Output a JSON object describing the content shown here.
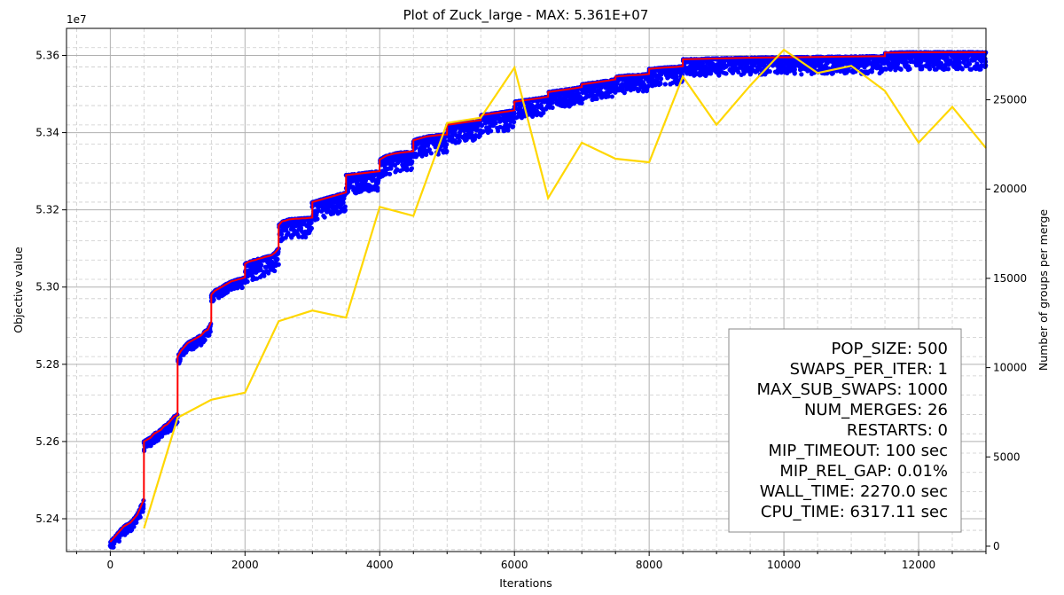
{
  "chart_data": {
    "type": "line",
    "title": "Plot of Zuck_large - MAX: 5.361E+07",
    "xlabel": "Iterations",
    "ylabel": "Objective value",
    "y2label": "Number of groups per merge",
    "y_offset_text": "1e7",
    "xlim": [
      -650,
      13000
    ],
    "ylim": [
      52.315,
      53.67
    ],
    "y2lim": [
      -300,
      29000
    ],
    "x_ticks": [
      0,
      2000,
      4000,
      6000,
      8000,
      10000,
      12000
    ],
    "x_tick_labels": [
      "0",
      "2000",
      "4000",
      "6000",
      "8000",
      "10000",
      "12000"
    ],
    "y_ticks": [
      52.4,
      52.6,
      52.8,
      53.0,
      53.2,
      53.4,
      53.6
    ],
    "y_tick_labels": [
      "5.24",
      "5.26",
      "5.28",
      "5.30",
      "5.32",
      "5.34",
      "5.36"
    ],
    "y2_ticks": [
      0,
      5000,
      10000,
      15000,
      20000,
      25000
    ],
    "y2_tick_labels": [
      "0",
      "5000",
      "10000",
      "15000",
      "20000",
      "25000"
    ],
    "grid": true,
    "series": [
      {
        "kind": "best",
        "color": "#ff0000",
        "x": [
          0,
          50,
          100,
          150,
          200,
          250,
          300,
          350,
          400,
          450,
          499,
          500,
          550,
          600,
          650,
          700,
          750,
          800,
          850,
          900,
          950,
          999,
          1000,
          1050,
          1100,
          1150,
          1200,
          1250,
          1300,
          1350,
          1400,
          1450,
          1499,
          1500,
          1550,
          1600,
          1650,
          1700,
          1750,
          1800,
          1850,
          1900,
          1950,
          1999,
          2000,
          2050,
          2100,
          2150,
          2200,
          2250,
          2300,
          2350,
          2400,
          2450,
          2499,
          2500,
          2550,
          2600,
          2650,
          2700,
          2750,
          2800,
          2850,
          2900,
          2950,
          2999,
          3000,
          3100,
          3200,
          3300,
          3400,
          3499,
          3500,
          3600,
          3700,
          3800,
          3900,
          3999,
          4000,
          4100,
          4200,
          4300,
          4400,
          4499,
          4500,
          4600,
          4700,
          4800,
          4900,
          4999,
          5000,
          5200,
          5400,
          5499,
          5500,
          5700,
          5900,
          5999,
          6000,
          6200,
          6400,
          6499,
          6500,
          6700,
          6900,
          6999,
          7000,
          7200,
          7400,
          7499,
          7500,
          7700,
          7900,
          7999,
          8000,
          8200,
          8400,
          8499,
          8500,
          9000,
          9500,
          10000,
          10500,
          11000,
          11499,
          11500,
          12000,
          12500,
          13000
        ],
        "values": [
          52.34,
          52.35,
          52.36,
          52.37,
          52.38,
          52.385,
          52.39,
          52.4,
          52.41,
          52.43,
          52.45,
          52.6,
          52.605,
          52.61,
          52.62,
          52.625,
          52.63,
          52.64,
          52.645,
          52.655,
          52.665,
          52.67,
          52.82,
          52.835,
          52.845,
          52.855,
          52.86,
          52.865,
          52.87,
          52.875,
          52.885,
          52.89,
          52.91,
          52.98,
          52.99,
          52.995,
          53.0,
          53.005,
          53.01,
          53.015,
          53.017,
          53.02,
          53.022,
          53.025,
          53.06,
          53.065,
          53.068,
          53.07,
          53.073,
          53.075,
          53.078,
          53.08,
          53.083,
          53.09,
          53.1,
          53.16,
          53.17,
          53.172,
          53.175,
          53.176,
          53.177,
          53.177,
          53.178,
          53.178,
          53.179,
          53.18,
          53.22,
          53.225,
          53.23,
          53.235,
          53.24,
          53.245,
          53.29,
          53.292,
          53.294,
          53.296,
          53.298,
          53.3,
          53.33,
          53.34,
          53.345,
          53.348,
          53.35,
          53.352,
          53.38,
          53.385,
          53.39,
          53.392,
          53.394,
          53.395,
          53.42,
          53.425,
          53.43,
          53.432,
          53.445,
          53.45,
          53.455,
          53.458,
          53.48,
          53.485,
          53.49,
          53.493,
          53.505,
          53.51,
          53.515,
          53.518,
          53.525,
          53.53,
          53.535,
          53.538,
          53.545,
          53.548,
          53.55,
          53.552,
          53.565,
          53.568,
          53.57,
          53.572,
          53.59,
          53.592,
          53.594,
          53.595,
          53.596,
          53.597,
          53.598,
          53.607,
          53.608,
          53.608,
          53.608
        ]
      },
      {
        "kind": "merges",
        "color": "#ffd700",
        "axis": "right",
        "x": [
          500,
          1000,
          1500,
          2000,
          2500,
          3000,
          3500,
          4000,
          4500,
          5000,
          5500,
          6000,
          6500,
          7000,
          7500,
          8000,
          8500,
          9000,
          9500,
          10000,
          10500,
          11000,
          11500,
          12000,
          12500,
          13000
        ],
        "values": [
          1000,
          7200,
          8200,
          8600,
          12600,
          13200,
          12800,
          19000,
          18500,
          23700,
          24000,
          26800,
          19500,
          22600,
          21700,
          21500,
          26300,
          23600,
          25800,
          27800,
          26500,
          26900,
          25500,
          22600,
          24600,
          22300
        ]
      },
      {
        "kind": "population",
        "color": "#0000ff",
        "marker": "dot"
      }
    ]
  },
  "legend_box": {
    "lines": [
      "POP_SIZE: 500",
      "SWAPS_PER_ITER: 1",
      "MAX_SUB_SWAPS: 1000",
      "NUM_MERGES: 26",
      "RESTARTS: 0",
      "MIP_TIMEOUT: 100 sec",
      "MIP_REL_GAP: 0.01%",
      "WALL_TIME: 2270.0 sec",
      "CPU_TIME: 6317.11 sec"
    ]
  }
}
